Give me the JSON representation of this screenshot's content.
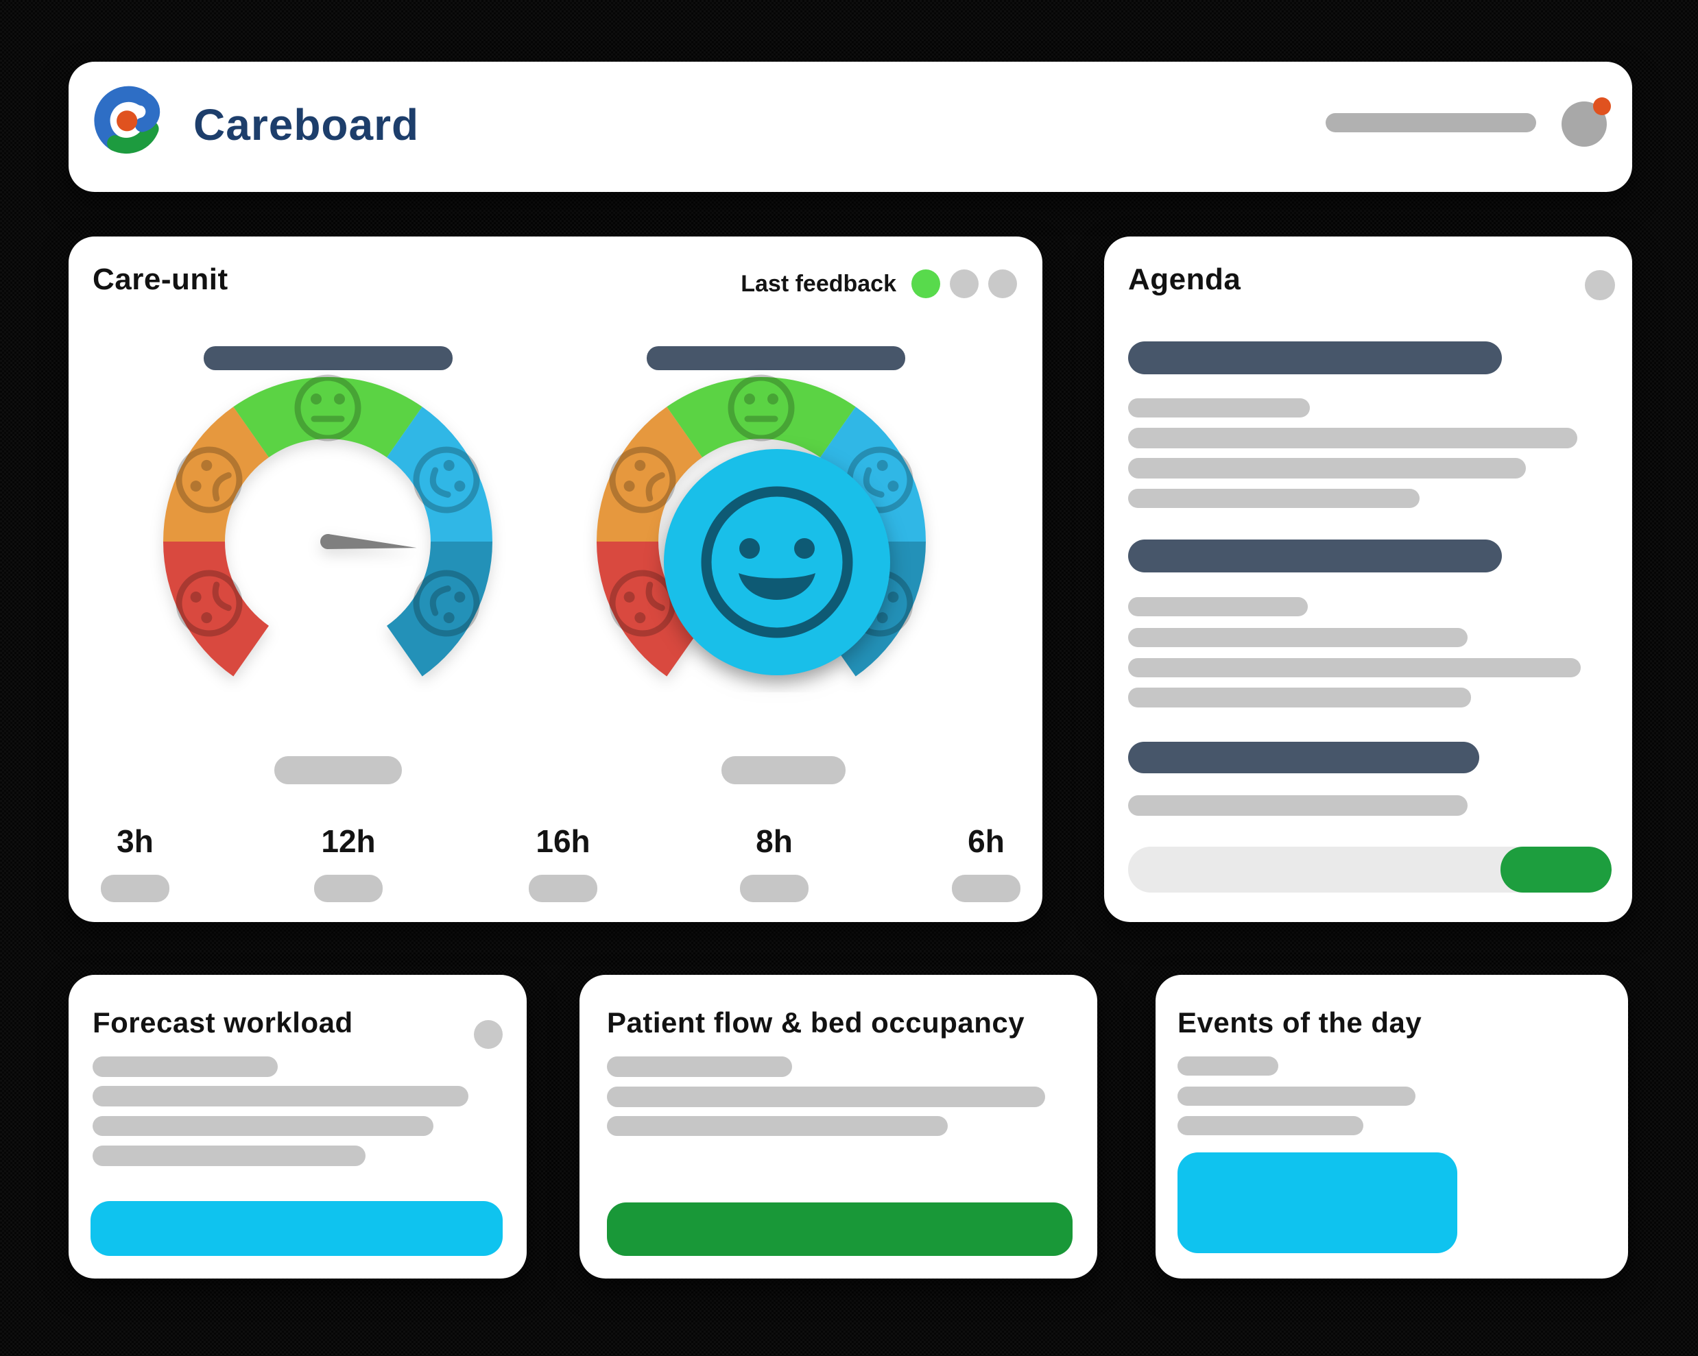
{
  "header": {
    "title": "Careboard",
    "logo": "careboard-logo"
  },
  "care_unit": {
    "title": "Care-unit",
    "legend_label": "Last feedback",
    "legend_dots": [
      {
        "name": "feedback-recent",
        "state": "on",
        "color": "#58da4c"
      },
      {
        "name": "feedback-older",
        "state": "off",
        "color": "#c9c9c9"
      },
      {
        "name": "feedback-oldest",
        "state": "off",
        "color": "#c9c9c9"
      }
    ],
    "time_labels": [
      "3h",
      "12h",
      "16h",
      "8h",
      "6h"
    ],
    "gauge": {
      "segments": [
        {
          "name": "very-unhappy",
          "icon": "sad-face-icon",
          "color": "#d9493f"
        },
        {
          "name": "unhappy",
          "icon": "sad-face-icon",
          "color": "#e6983e"
        },
        {
          "name": "neutral",
          "icon": "neutral-face-icon",
          "color": "#5bd344"
        },
        {
          "name": "happy",
          "icon": "happy-face-icon",
          "color": "#30b7e6"
        },
        {
          "name": "very-happy",
          "icon": "happy-face-icon",
          "color": "#2391b8"
        }
      ],
      "needle_angle_deg": 94,
      "selected_feedback": "happy",
      "selected_color": "#19bfe9"
    }
  },
  "agenda": {
    "title": "Agenda",
    "progress": {
      "fill_percent": 23,
      "track_color": "#eaeaea",
      "fill_color": "#1d9e3e"
    }
  },
  "cards": {
    "forecast": {
      "title": "Forecast workload",
      "action_color": "#0fc3ef"
    },
    "patient_flow": {
      "title": "Patient flow & bed occupancy",
      "action_color": "#199838"
    },
    "events": {
      "title": "Events of the day",
      "highlight_color": "#0fc3ef"
    }
  },
  "colors": {
    "navy": "#1d3e6b",
    "legend-green": "#58da4c",
    "gauge-red": "#d9493f",
    "gauge-orange": "#e6983e",
    "gauge-green": "#5bd344",
    "gauge-lblue": "#30b7e6",
    "gauge-dblue": "#2391b8",
    "gauge-center": "#19bfe9",
    "progress-green": "#1d9e3e",
    "btn-green": "#199838",
    "cyan": "#0fc3ef",
    "logo-blue": "#2e6ec5",
    "logo-green": "#1d9b3f",
    "logo-orange": "#e0521f"
  }
}
